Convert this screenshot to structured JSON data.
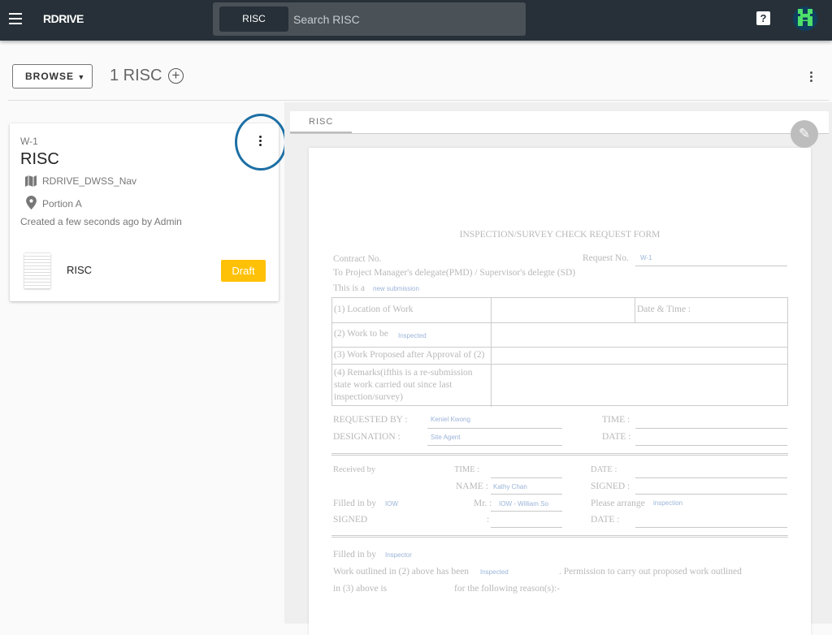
{
  "header": {
    "logo": "RDRIVE",
    "search_chip": "RISC",
    "search_placeholder": "Search RISC",
    "help_icon": "?"
  },
  "toolbar": {
    "browse_label": "BROWSE",
    "count_label": "1 RISC"
  },
  "card": {
    "code": "W-1",
    "title": "RISC",
    "map": "RDRIVE_DWSS_Nav",
    "location": "Portion A",
    "created": "Created a few seconds ago by Admin",
    "doc_name": "RISC",
    "status": "Draft",
    "status_color": "#ffc107",
    "highlight_color": "#1d6fa5"
  },
  "viewer": {
    "tab": "RISC"
  },
  "form": {
    "title": "INSPECTION/SURVEY CHECK REQUEST FORM",
    "contract_no": "Contract No.",
    "request_no_label": "Request No.",
    "request_no": "W-1",
    "to_line": "To Project Manager's delegate(PMD) / Supervisor's delegte (SD)",
    "this_is_a": "This is a",
    "submission_type": "new submission",
    "row1": "(1) Location of Work",
    "date_time": "Date & Time :",
    "row2": "(2) Work to be",
    "row2_value": "Inspected",
    "row3": "(3) Work Proposed after Approval of (2)",
    "row4": "(4) Remarks(ifthis is a re-submission state work carried out since last inspection/survey)",
    "requested_by_label": "REQUESTED BY :",
    "requested_by": "Keniel Kwong",
    "time_label": "TIME :",
    "designation_label": "DESIGNATION :",
    "designation": "Site Agent",
    "date_label": "DATE :",
    "received_by": "Received by",
    "time2": "TIME :",
    "date2": "DATE    :",
    "name_label": "NAME :",
    "name": "Kathy Chan",
    "signed_label": "SIGNED :",
    "filled_in_by": "Filled in by",
    "filled_by_value": "IOW",
    "mr_label": "Mr. :",
    "mr_value": "IOW - William So",
    "please_arrange": "Please arrange",
    "arrange_value": "inspection",
    "signed2": "SIGNED",
    "colon": ":",
    "date3": "DATE    :",
    "filled_in_by2": "Filled in by",
    "filled_by_value2": "Inspector",
    "work_outlined": "Work outlined in (2) above has been",
    "work_outlined_value": "Inspected",
    "permission": ". Permission to carry out proposed work outlined",
    "in3": "in (3) above is",
    "reasons": "for the following reason(s):-"
  }
}
